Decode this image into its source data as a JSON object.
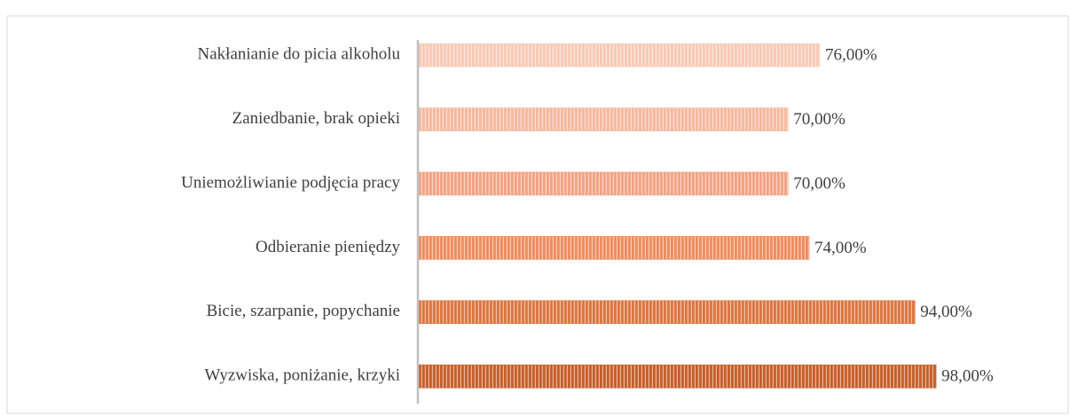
{
  "chart_data": {
    "type": "barh",
    "categories": [
      "Nakłanianie do picia alkoholu",
      "Zaniedbanie, brak opieki",
      "Uniemożliwianie podjęcia pracy",
      "Odbieranie pieniędzy",
      "Bicie, szarpanie, popychanie",
      "Wyzwiska, poniżanie, krzyki"
    ],
    "values": [
      76,
      70,
      70,
      74,
      94,
      98
    ],
    "value_labels": [
      "76,00%",
      "70,00%",
      "70,00%",
      "74,00%",
      "94,00%",
      "98,00%"
    ],
    "colors": [
      "#f7c9b5",
      "#f5b89f",
      "#f2a283",
      "#ee8c5e",
      "#dc7540",
      "#c75e2a"
    ],
    "xlim": [
      0,
      100
    ]
  }
}
